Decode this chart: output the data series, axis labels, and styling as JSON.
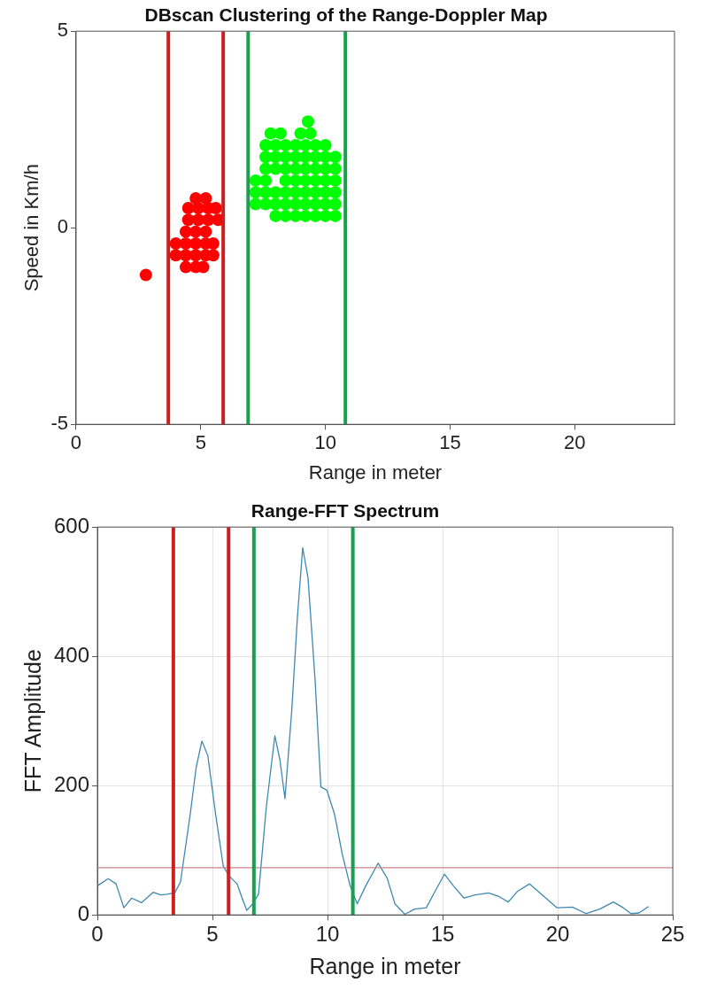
{
  "chart_data": [
    {
      "type": "scatter",
      "title": "DBscan Clustering of the Range-Doppler Map",
      "xlabel": "Range in meter",
      "ylabel": "Speed in Km/h",
      "xlim": [
        0,
        24
      ],
      "xticks": [
        0,
        5,
        10,
        15,
        20
      ],
      "ylim": [
        -5,
        5
      ],
      "yticks": [
        -5,
        0,
        5
      ],
      "grid": false,
      "legend": false,
      "marker": "circle",
      "series": [
        {
          "color": "#ff0000",
          "x": [
            2.8,
            4.4,
            4.8,
            5.1,
            4.0,
            4.4,
            4.8,
            5.2,
            5.5,
            4.0,
            4.4,
            4.8,
            5.2,
            5.5,
            4.4,
            4.8,
            5.2,
            4.5,
            4.9,
            5.3,
            5.7,
            4.5,
            4.9,
            5.3,
            5.6,
            4.8,
            5.2
          ],
          "values": [
            -1.2,
            -1.0,
            -1.0,
            -1.0,
            -0.7,
            -0.7,
            -0.7,
            -0.7,
            -0.7,
            -0.4,
            -0.4,
            -0.4,
            -0.4,
            -0.4,
            -0.1,
            -0.1,
            -0.1,
            0.2,
            0.2,
            0.2,
            0.2,
            0.5,
            0.5,
            0.5,
            0.5,
            0.75,
            0.75
          ]
        },
        {
          "color": "#00ff00",
          "x": [
            8.0,
            8.4,
            8.8,
            9.2,
            9.6,
            10.0,
            10.4,
            7.2,
            7.6,
            8.0,
            8.4,
            8.8,
            9.2,
            9.6,
            10.0,
            10.4,
            7.2,
            7.6,
            8.0,
            8.4,
            8.8,
            9.2,
            9.6,
            10.0,
            10.4,
            7.2,
            7.6,
            8.4,
            8.8,
            9.2,
            9.6,
            10.0,
            10.4,
            7.6,
            8.0,
            8.4,
            8.8,
            9.2,
            9.6,
            10.0,
            10.4,
            7.6,
            8.0,
            8.4,
            8.8,
            9.2,
            9.6,
            10.0,
            10.4,
            7.6,
            8.0,
            8.4,
            8.8,
            9.2,
            9.6,
            10.0,
            7.8,
            8.2,
            9.0,
            9.4,
            9.3
          ],
          "values": [
            0.3,
            0.3,
            0.3,
            0.3,
            0.3,
            0.3,
            0.3,
            0.6,
            0.6,
            0.6,
            0.6,
            0.6,
            0.6,
            0.6,
            0.6,
            0.6,
            0.9,
            0.9,
            0.9,
            0.9,
            0.9,
            0.9,
            0.9,
            0.9,
            0.9,
            1.2,
            1.2,
            1.2,
            1.2,
            1.2,
            1.2,
            1.2,
            1.2,
            1.5,
            1.5,
            1.5,
            1.5,
            1.5,
            1.5,
            1.5,
            1.5,
            1.8,
            1.8,
            1.8,
            1.8,
            1.8,
            1.8,
            1.8,
            1.8,
            2.1,
            2.1,
            2.1,
            2.1,
            2.1,
            2.1,
            2.1,
            2.4,
            2.4,
            2.4,
            2.4,
            2.7
          ]
        }
      ],
      "ref_lines": [
        {
          "axis": "x",
          "value": 3.7,
          "color": "#cc1f1f"
        },
        {
          "axis": "x",
          "value": 5.9,
          "color": "#cc1f1f"
        },
        {
          "axis": "x",
          "value": 6.9,
          "color": "#1a9e50"
        },
        {
          "axis": "x",
          "value": 10.8,
          "color": "#1a9e50"
        }
      ]
    },
    {
      "type": "line",
      "title": "Range-FFT Spectrum",
      "xlabel": "Range in meter",
      "ylabel": "FFT Amplitude",
      "xlim": [
        0,
        25
      ],
      "xticks": [
        0,
        5,
        10,
        15,
        20,
        25
      ],
      "ylim": [
        0,
        600
      ],
      "yticks": [
        0,
        200,
        400,
        600
      ],
      "grid": true,
      "legend": false,
      "marker": "none",
      "line_style": "solid",
      "series": [
        {
          "color": "#3f88b0",
          "x": [
            0,
            0.47,
            0.81,
            1.15,
            1.49,
            1.92,
            2.42,
            2.76,
            3.02,
            3.36,
            3.61,
            4.03,
            4.29,
            4.54,
            4.8,
            5.14,
            5.47,
            5.73,
            6.07,
            6.32,
            6.49,
            6.75,
            7.0,
            7.34,
            7.71,
            7.93,
            8.15,
            8.44,
            8.69,
            8.92,
            9.15,
            9.46,
            9.71,
            9.97,
            10.31,
            10.64,
            10.98,
            11.29,
            11.66,
            12.2,
            12.59,
            12.93,
            13.36,
            13.78,
            14.29,
            14.71,
            15.08,
            15.47,
            15.93,
            16.41,
            17.0,
            17.42,
            17.85,
            18.27,
            18.78,
            19.2,
            19.97,
            20.64,
            21.24,
            21.83,
            22.42,
            22.85,
            23.19,
            23.53,
            23.95
          ],
          "values": [
            45,
            56,
            48,
            11,
            26,
            19,
            35,
            31,
            32,
            34,
            51,
            155,
            228,
            269,
            246,
            155,
            75,
            60,
            48,
            23,
            7,
            17,
            32,
            167,
            277,
            240,
            180,
            314,
            460,
            568,
            522,
            363,
            198,
            193,
            155,
            94,
            45,
            17,
            45,
            80,
            57,
            17,
            1,
            9,
            11,
            39,
            63,
            45,
            26,
            31,
            34,
            29,
            20,
            37,
            48,
            35,
            11,
            12,
            2,
            9,
            20,
            11,
            2,
            3,
            13
          ]
        }
      ],
      "ref_lines": [
        {
          "axis": "y",
          "value": 73,
          "color": "#c8848c"
        },
        {
          "axis": "x",
          "value": 3.3,
          "color": "#cc1f1f"
        },
        {
          "axis": "x",
          "value": 5.7,
          "color": "#cc1f1f"
        },
        {
          "axis": "x",
          "value": 6.8,
          "color": "#1a9e50"
        },
        {
          "axis": "x",
          "value": 11.1,
          "color": "#1a9e50"
        }
      ]
    }
  ]
}
